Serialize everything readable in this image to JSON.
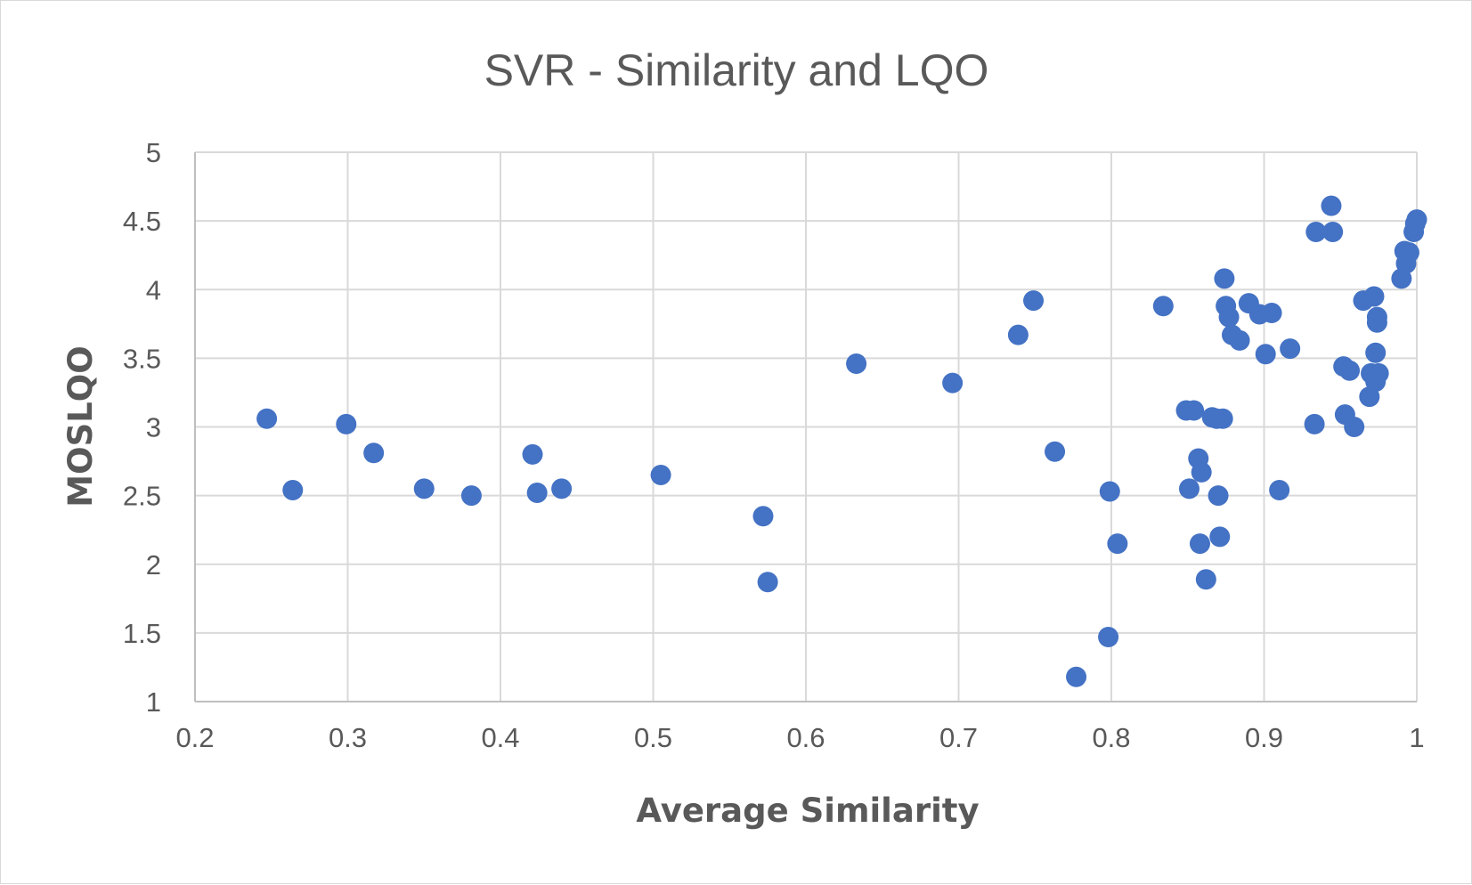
{
  "chart_data": {
    "type": "scatter",
    "title": "SVR - Similarity and LQO",
    "xlabel": "Average Similarity",
    "ylabel": "MOSLQO",
    "xlim": [
      0.2,
      1
    ],
    "ylim": [
      1,
      5
    ],
    "xticks": [
      "0.2",
      "0.3",
      "0.4",
      "0.5",
      "0.6",
      "0.7",
      "0.8",
      "0.9",
      "1"
    ],
    "yticks": [
      "1",
      "1.5",
      "2",
      "2.5",
      "3",
      "3.5",
      "4",
      "4.5",
      "5"
    ],
    "grid": true,
    "legend": "none",
    "marker_color": "#4472c4",
    "series": [
      {
        "points": [
          [
            0.247,
            3.06
          ],
          [
            0.264,
            2.54
          ],
          [
            0.299,
            3.02
          ],
          [
            0.317,
            2.81
          ],
          [
            0.35,
            2.55
          ],
          [
            0.381,
            2.5
          ],
          [
            0.421,
            2.8
          ],
          [
            0.424,
            2.52
          ],
          [
            0.44,
            2.55
          ],
          [
            0.505,
            2.65
          ],
          [
            0.572,
            2.35
          ],
          [
            0.575,
            1.87
          ],
          [
            0.633,
            3.46
          ],
          [
            0.696,
            3.32
          ],
          [
            0.739,
            3.67
          ],
          [
            0.749,
            3.92
          ],
          [
            0.763,
            2.82
          ],
          [
            0.777,
            1.18
          ],
          [
            0.798,
            1.47
          ],
          [
            0.799,
            2.53
          ],
          [
            0.804,
            2.15
          ],
          [
            0.834,
            3.88
          ],
          [
            0.849,
            3.12
          ],
          [
            0.851,
            2.55
          ],
          [
            0.854,
            3.12
          ],
          [
            0.857,
            2.77
          ],
          [
            0.858,
            2.15
          ],
          [
            0.859,
            2.67
          ],
          [
            0.862,
            1.89
          ],
          [
            0.866,
            3.07
          ],
          [
            0.869,
            3.06
          ],
          [
            0.87,
            2.5
          ],
          [
            0.871,
            2.2
          ],
          [
            0.873,
            3.06
          ],
          [
            0.874,
            4.08
          ],
          [
            0.875,
            3.88
          ],
          [
            0.877,
            3.8
          ],
          [
            0.879,
            3.67
          ],
          [
            0.884,
            3.63
          ],
          [
            0.89,
            3.9
          ],
          [
            0.897,
            3.82
          ],
          [
            0.901,
            3.53
          ],
          [
            0.905,
            3.83
          ],
          [
            0.91,
            2.54
          ],
          [
            0.917,
            3.57
          ],
          [
            0.933,
            3.02
          ],
          [
            0.934,
            4.42
          ],
          [
            0.944,
            4.61
          ],
          [
            0.945,
            4.42
          ],
          [
            0.952,
            3.44
          ],
          [
            0.953,
            3.09
          ],
          [
            0.956,
            3.41
          ],
          [
            0.959,
            3.0
          ],
          [
            0.965,
            3.92
          ],
          [
            0.969,
            3.22
          ],
          [
            0.97,
            3.39
          ],
          [
            0.972,
            3.95
          ],
          [
            0.973,
            3.33
          ],
          [
            0.973,
            3.54
          ],
          [
            0.974,
            3.8
          ],
          [
            0.974,
            3.76
          ],
          [
            0.975,
            3.39
          ],
          [
            0.99,
            4.08
          ],
          [
            0.992,
            4.28
          ],
          [
            0.993,
            4.19
          ],
          [
            0.995,
            4.27
          ],
          [
            0.998,
            4.42
          ],
          [
            0.999,
            4.48
          ],
          [
            1.0,
            4.51
          ]
        ]
      }
    ]
  }
}
